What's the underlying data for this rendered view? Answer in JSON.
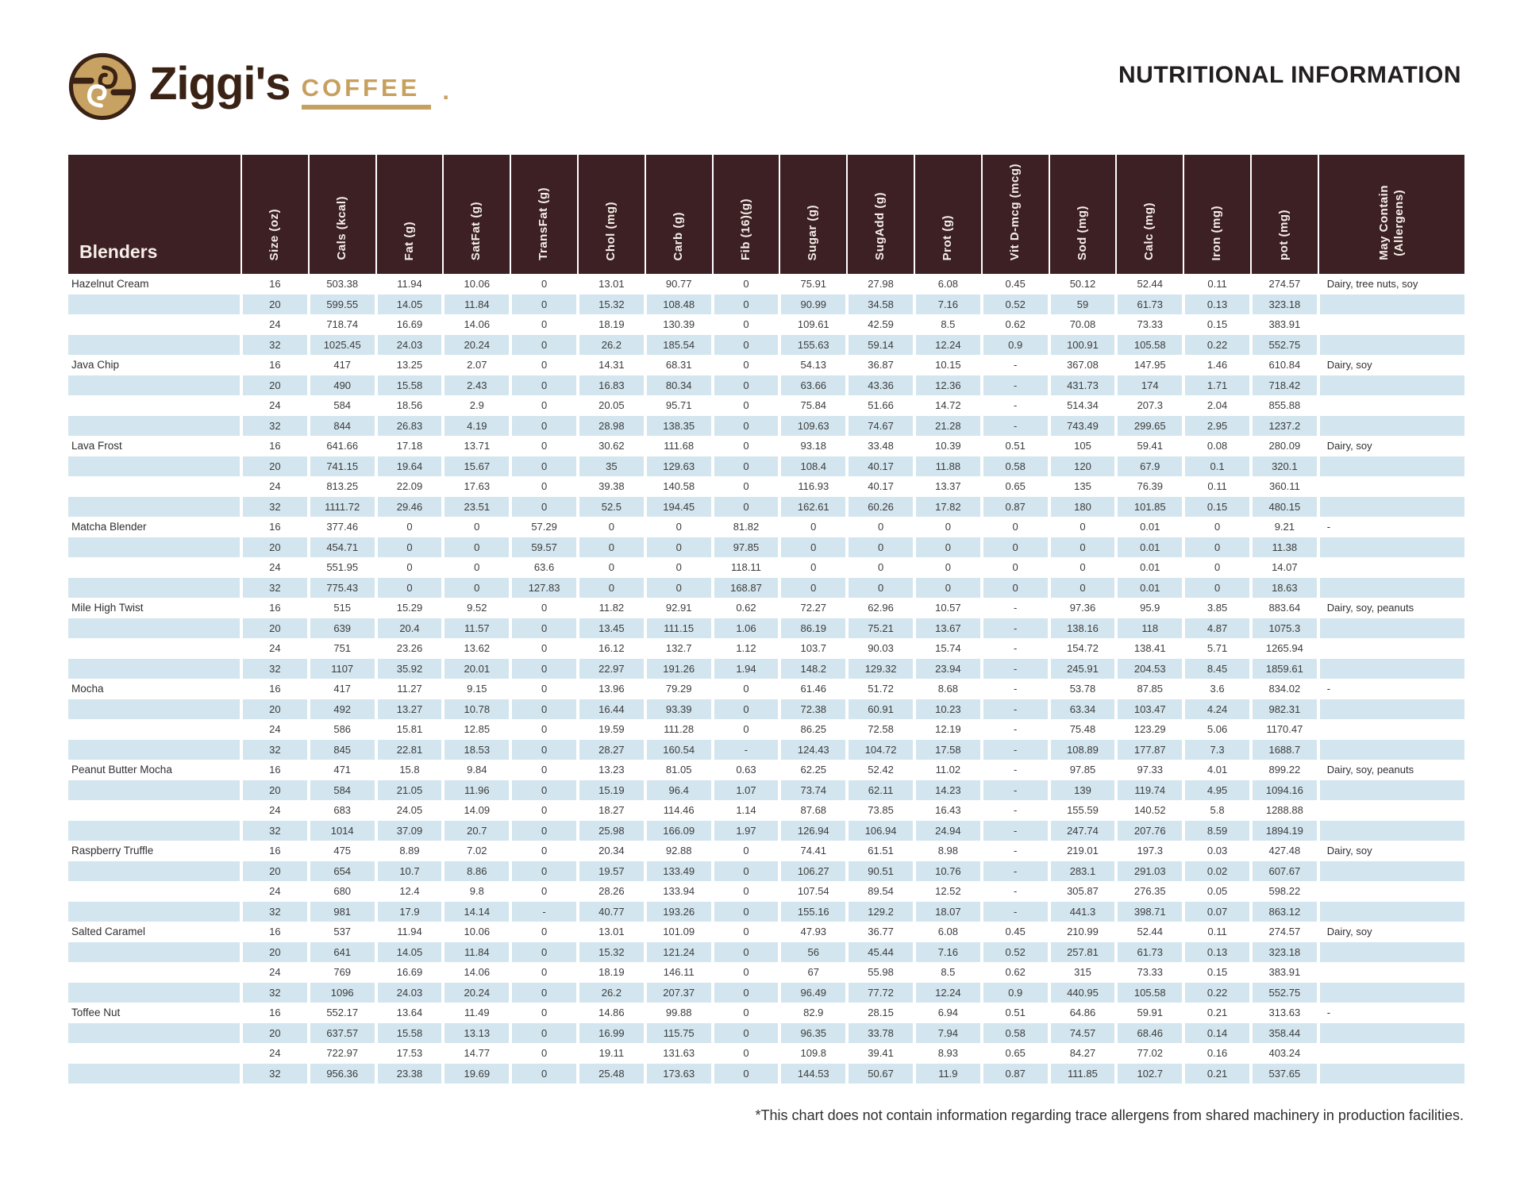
{
  "header": {
    "brand_name": "Ziggi's",
    "brand_sub": "COFFEE",
    "brand_period": ".",
    "title": "NUTRITIONAL INFORMATION"
  },
  "colors": {
    "header_bg": "#3d2023",
    "stripe_blue": "#d3e5ee",
    "brand_tan": "#c6a05f",
    "brand_brown": "#3a2214",
    "title_color": "#231f20"
  },
  "table": {
    "corner_label": "Blenders",
    "columns": [
      "Size (oz)",
      "Cals (kcal)",
      "Fat (g)",
      "SatFat (g)",
      "TransFat (g)",
      "Chol (mg)",
      "Carb (g)",
      "Fib (16)(g)",
      "Sugar (g)",
      "SugAdd (g)",
      "Prot (g)",
      "Vit D-mcg (mcg)",
      "Sod (mg)",
      "Calc (mg)",
      "Iron (mg)",
      "pot (mg)",
      "May Contain\n(Allergens)"
    ],
    "groups": [
      {
        "name": "Hazelnut Cream",
        "allergens": "Dairy, tree nuts, soy",
        "rows": [
          [
            "16",
            "503.38",
            "11.94",
            "10.06",
            "0",
            "13.01",
            "90.77",
            "0",
            "75.91",
            "27.98",
            "6.08",
            "0.45",
            "50.12",
            "52.44",
            "0.11",
            "274.57"
          ],
          [
            "20",
            "599.55",
            "14.05",
            "11.84",
            "0",
            "15.32",
            "108.48",
            "0",
            "90.99",
            "34.58",
            "7.16",
            "0.52",
            "59",
            "61.73",
            "0.13",
            "323.18"
          ],
          [
            "24",
            "718.74",
            "16.69",
            "14.06",
            "0",
            "18.19",
            "130.39",
            "0",
            "109.61",
            "42.59",
            "8.5",
            "0.62",
            "70.08",
            "73.33",
            "0.15",
            "383.91"
          ],
          [
            "32",
            "1025.45",
            "24.03",
            "20.24",
            "0",
            "26.2",
            "185.54",
            "0",
            "155.63",
            "59.14",
            "12.24",
            "0.9",
            "100.91",
            "105.58",
            "0.22",
            "552.75"
          ]
        ]
      },
      {
        "name": "Java Chip",
        "allergens": "Dairy, soy",
        "rows": [
          [
            "16",
            "417",
            "13.25",
            "2.07",
            "0",
            "14.31",
            "68.31",
            "0",
            "54.13",
            "36.87",
            "10.15",
            "-",
            "367.08",
            "147.95",
            "1.46",
            "610.84"
          ],
          [
            "20",
            "490",
            "15.58",
            "2.43",
            "0",
            "16.83",
            "80.34",
            "0",
            "63.66",
            "43.36",
            "12.36",
            "-",
            "431.73",
            "174",
            "1.71",
            "718.42"
          ],
          [
            "24",
            "584",
            "18.56",
            "2.9",
            "0",
            "20.05",
            "95.71",
            "0",
            "75.84",
            "51.66",
            "14.72",
            "-",
            "514.34",
            "207.3",
            "2.04",
            "855.88"
          ],
          [
            "32",
            "844",
            "26.83",
            "4.19",
            "0",
            "28.98",
            "138.35",
            "0",
            "109.63",
            "74.67",
            "21.28",
            "-",
            "743.49",
            "299.65",
            "2.95",
            "1237.2"
          ]
        ]
      },
      {
        "name": "Lava Frost",
        "allergens": "Dairy, soy",
        "rows": [
          [
            "16",
            "641.66",
            "17.18",
            "13.71",
            "0",
            "30.62",
            "111.68",
            "0",
            "93.18",
            "33.48",
            "10.39",
            "0.51",
            "105",
            "59.41",
            "0.08",
            "280.09"
          ],
          [
            "20",
            "741.15",
            "19.64",
            "15.67",
            "0",
            "35",
            "129.63",
            "0",
            "108.4",
            "40.17",
            "11.88",
            "0.58",
            "120",
            "67.9",
            "0.1",
            "320.1"
          ],
          [
            "24",
            "813.25",
            "22.09",
            "17.63",
            "0",
            "39.38",
            "140.58",
            "0",
            "116.93",
            "40.17",
            "13.37",
            "0.65",
            "135",
            "76.39",
            "0.11",
            "360.11"
          ],
          [
            "32",
            "1111.72",
            "29.46",
            "23.51",
            "0",
            "52.5",
            "194.45",
            "0",
            "162.61",
            "60.26",
            "17.82",
            "0.87",
            "180",
            "101.85",
            "0.15",
            "480.15"
          ]
        ]
      },
      {
        "name": "Matcha Blender",
        "allergens": "-",
        "rows": [
          [
            "16",
            "377.46",
            "0",
            "0",
            "57.29",
            "0",
            "0",
            "81.82",
            "0",
            "0",
            "0",
            "0",
            "0",
            "0.01",
            "0",
            "9.21"
          ],
          [
            "20",
            "454.71",
            "0",
            "0",
            "59.57",
            "0",
            "0",
            "97.85",
            "0",
            "0",
            "0",
            "0",
            "0",
            "0.01",
            "0",
            "11.38"
          ],
          [
            "24",
            "551.95",
            "0",
            "0",
            "63.6",
            "0",
            "0",
            "118.11",
            "0",
            "0",
            "0",
            "0",
            "0",
            "0.01",
            "0",
            "14.07"
          ],
          [
            "32",
            "775.43",
            "0",
            "0",
            "127.83",
            "0",
            "0",
            "168.87",
            "0",
            "0",
            "0",
            "0",
            "0",
            "0.01",
            "0",
            "18.63"
          ]
        ]
      },
      {
        "name": "Mile High Twist",
        "allergens": "Dairy, soy, peanuts",
        "rows": [
          [
            "16",
            "515",
            "15.29",
            "9.52",
            "0",
            "11.82",
            "92.91",
            "0.62",
            "72.27",
            "62.96",
            "10.57",
            "-",
            "97.36",
            "95.9",
            "3.85",
            "883.64"
          ],
          [
            "20",
            "639",
            "20.4",
            "11.57",
            "0",
            "13.45",
            "111.15",
            "1.06",
            "86.19",
            "75.21",
            "13.67",
            "-",
            "138.16",
            "118",
            "4.87",
            "1075.3"
          ],
          [
            "24",
            "751",
            "23.26",
            "13.62",
            "0",
            "16.12",
            "132.7",
            "1.12",
            "103.7",
            "90.03",
            "15.74",
            "-",
            "154.72",
            "138.41",
            "5.71",
            "1265.94"
          ],
          [
            "32",
            "1107",
            "35.92",
            "20.01",
            "0",
            "22.97",
            "191.26",
            "1.94",
            "148.2",
            "129.32",
            "23.94",
            "-",
            "245.91",
            "204.53",
            "8.45",
            "1859.61"
          ]
        ]
      },
      {
        "name": "Mocha",
        "allergens": "-",
        "rows": [
          [
            "16",
            "417",
            "11.27",
            "9.15",
            "0",
            "13.96",
            "79.29",
            "0",
            "61.46",
            "51.72",
            "8.68",
            "-",
            "53.78",
            "87.85",
            "3.6",
            "834.02"
          ],
          [
            "20",
            "492",
            "13.27",
            "10.78",
            "0",
            "16.44",
            "93.39",
            "0",
            "72.38",
            "60.91",
            "10.23",
            "-",
            "63.34",
            "103.47",
            "4.24",
            "982.31"
          ],
          [
            "24",
            "586",
            "15.81",
            "12.85",
            "0",
            "19.59",
            "111.28",
            "0",
            "86.25",
            "72.58",
            "12.19",
            "-",
            "75.48",
            "123.29",
            "5.06",
            "1170.47"
          ],
          [
            "32",
            "845",
            "22.81",
            "18.53",
            "0",
            "28.27",
            "160.54",
            "-",
            "124.43",
            "104.72",
            "17.58",
            "-",
            "108.89",
            "177.87",
            "7.3",
            "1688.7"
          ]
        ]
      },
      {
        "name": "Peanut Butter Mocha",
        "allergens": "Dairy, soy, peanuts",
        "rows": [
          [
            "16",
            "471",
            "15.8",
            "9.84",
            "0",
            "13.23",
            "81.05",
            "0.63",
            "62.25",
            "52.42",
            "11.02",
            "-",
            "97.85",
            "97.33",
            "4.01",
            "899.22"
          ],
          [
            "20",
            "584",
            "21.05",
            "11.96",
            "0",
            "15.19",
            "96.4",
            "1.07",
            "73.74",
            "62.11",
            "14.23",
            "-",
            "139",
            "119.74",
            "4.95",
            "1094.16"
          ],
          [
            "24",
            "683",
            "24.05",
            "14.09",
            "0",
            "18.27",
            "114.46",
            "1.14",
            "87.68",
            "73.85",
            "16.43",
            "-",
            "155.59",
            "140.52",
            "5.8",
            "1288.88"
          ],
          [
            "32",
            "1014",
            "37.09",
            "20.7",
            "0",
            "25.98",
            "166.09",
            "1.97",
            "126.94",
            "106.94",
            "24.94",
            "-",
            "247.74",
            "207.76",
            "8.59",
            "1894.19"
          ]
        ]
      },
      {
        "name": "Raspberry Truffle",
        "allergens": "Dairy, soy",
        "rows": [
          [
            "16",
            "475",
            "8.89",
            "7.02",
            "0",
            "20.34",
            "92.88",
            "0",
            "74.41",
            "61.51",
            "8.98",
            "-",
            "219.01",
            "197.3",
            "0.03",
            "427.48"
          ],
          [
            "20",
            "654",
            "10.7",
            "8.86",
            "0",
            "19.57",
            "133.49",
            "0",
            "106.27",
            "90.51",
            "10.76",
            "-",
            "283.1",
            "291.03",
            "0.02",
            "607.67"
          ],
          [
            "24",
            "680",
            "12.4",
            "9.8",
            "0",
            "28.26",
            "133.94",
            "0",
            "107.54",
            "89.54",
            "12.52",
            "-",
            "305.87",
            "276.35",
            "0.05",
            "598.22"
          ],
          [
            "32",
            "981",
            "17.9",
            "14.14",
            "-",
            "40.77",
            "193.26",
            "0",
            "155.16",
            "129.2",
            "18.07",
            "-",
            "441.3",
            "398.71",
            "0.07",
            "863.12"
          ]
        ]
      },
      {
        "name": "Salted Caramel",
        "allergens": "Dairy, soy",
        "rows": [
          [
            "16",
            "537",
            "11.94",
            "10.06",
            "0",
            "13.01",
            "101.09",
            "0",
            "47.93",
            "36.77",
            "6.08",
            "0.45",
            "210.99",
            "52.44",
            "0.11",
            "274.57"
          ],
          [
            "20",
            "641",
            "14.05",
            "11.84",
            "0",
            "15.32",
            "121.24",
            "0",
            "56",
            "45.44",
            "7.16",
            "0.52",
            "257.81",
            "61.73",
            "0.13",
            "323.18"
          ],
          [
            "24",
            "769",
            "16.69",
            "14.06",
            "0",
            "18.19",
            "146.11",
            "0",
            "67",
            "55.98",
            "8.5",
            "0.62",
            "315",
            "73.33",
            "0.15",
            "383.91"
          ],
          [
            "32",
            "1096",
            "24.03",
            "20.24",
            "0",
            "26.2",
            "207.37",
            "0",
            "96.49",
            "77.72",
            "12.24",
            "0.9",
            "440.95",
            "105.58",
            "0.22",
            "552.75"
          ]
        ]
      },
      {
        "name": "Toffee Nut",
        "allergens": "-",
        "rows": [
          [
            "16",
            "552.17",
            "13.64",
            "11.49",
            "0",
            "14.86",
            "99.88",
            "0",
            "82.9",
            "28.15",
            "6.94",
            "0.51",
            "64.86",
            "59.91",
            "0.21",
            "313.63"
          ],
          [
            "20",
            "637.57",
            "15.58",
            "13.13",
            "0",
            "16.99",
            "115.75",
            "0",
            "96.35",
            "33.78",
            "7.94",
            "0.58",
            "74.57",
            "68.46",
            "0.14",
            "358.44"
          ],
          [
            "24",
            "722.97",
            "17.53",
            "14.77",
            "0",
            "19.11",
            "131.63",
            "0",
            "109.8",
            "39.41",
            "8.93",
            "0.65",
            "84.27",
            "77.02",
            "0.16",
            "403.24"
          ],
          [
            "32",
            "956.36",
            "23.38",
            "19.69",
            "0",
            "25.48",
            "173.63",
            "0",
            "144.53",
            "50.67",
            "11.9",
            "0.87",
            "111.85",
            "102.7",
            "0.21",
            "537.65"
          ]
        ]
      }
    ]
  },
  "footnote": "*This chart does not contain information regarding trace allergens from shared machinery in production facilities."
}
